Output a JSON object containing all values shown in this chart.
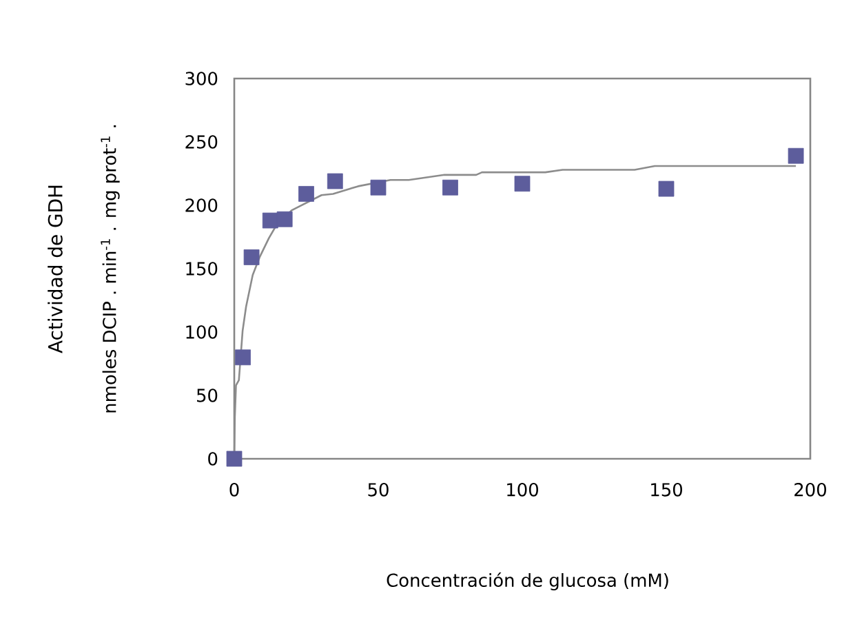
{
  "chart_data": {
    "type": "scatter",
    "xlabel": "Concentración de glucosa (mM)",
    "ylabel": [
      "Actividad de GDH",
      "nmoles DCIP . min$^{-1}$ . mg prot$^{-1}$ ."
    ],
    "xlim": [
      0,
      200
    ],
    "ylim": [
      0,
      300
    ],
    "xticks": [
      0,
      50,
      100,
      150,
      200
    ],
    "yticks": [
      0,
      50,
      100,
      150,
      200,
      250,
      300
    ],
    "grid": false,
    "series": [
      {
        "color": "#5d5d9c",
        "marker": "square",
        "x": [
          0,
          3,
          6,
          12.5,
          17.5,
          25,
          35,
          50,
          75,
          100,
          150,
          195
        ],
        "values": [
          0,
          80,
          159,
          188,
          189,
          209,
          219,
          214,
          214,
          217,
          213,
          239
        ]
      },
      {
        "type": "line",
        "color": "#8c8c8c",
        "marker": "none",
        "line_style": "solid",
        "x": [
          0,
          0.2,
          0.6,
          1.6,
          2.9,
          4.1,
          6.4,
          8.8,
          12,
          14.3,
          19.9,
          30.3,
          34.3,
          43,
          54.2,
          60.6,
          73,
          84,
          86,
          108,
          114,
          139,
          146,
          195
        ],
        "values": [
          0,
          33,
          58,
          62,
          101,
          120,
          145,
          159,
          174,
          183,
          196,
          208,
          209,
          215,
          220,
          220,
          224,
          224,
          226,
          226,
          228,
          228,
          231,
          231
        ]
      }
    ]
  }
}
